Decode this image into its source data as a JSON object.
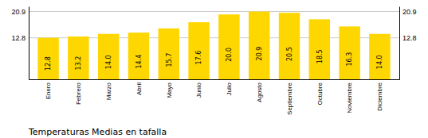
{
  "chart_data": {
    "type": "bar",
    "title": "Temperaturas Medias en tafalla",
    "categories": [
      "Enero",
      "Febrero",
      "Marzo",
      "Abril",
      "Mayo",
      "Junio",
      "Julio",
      "Agosto",
      "Septiembre",
      "Octubre",
      "Noviembre",
      "Diciembre"
    ],
    "values": [
      12.8,
      13.2,
      14.0,
      14.4,
      15.7,
      17.6,
      20.0,
      20.9,
      20.5,
      18.5,
      16.3,
      14.0
    ],
    "value_labels": [
      "12.8",
      "13.2",
      "14.0",
      "14.4",
      "15.7",
      "17.6",
      "20.0",
      "20.9",
      "20.5",
      "18.5",
      "16.3",
      "14.0"
    ],
    "data_labels": true,
    "color": "#FFD700",
    "ylim": [
      0,
      22.5
    ],
    "yticks": [
      12.8,
      20.9
    ],
    "y2lim": [
      0,
      22.5
    ],
    "y2ticks": [
      12.8,
      20.9
    ],
    "grid": true
  }
}
